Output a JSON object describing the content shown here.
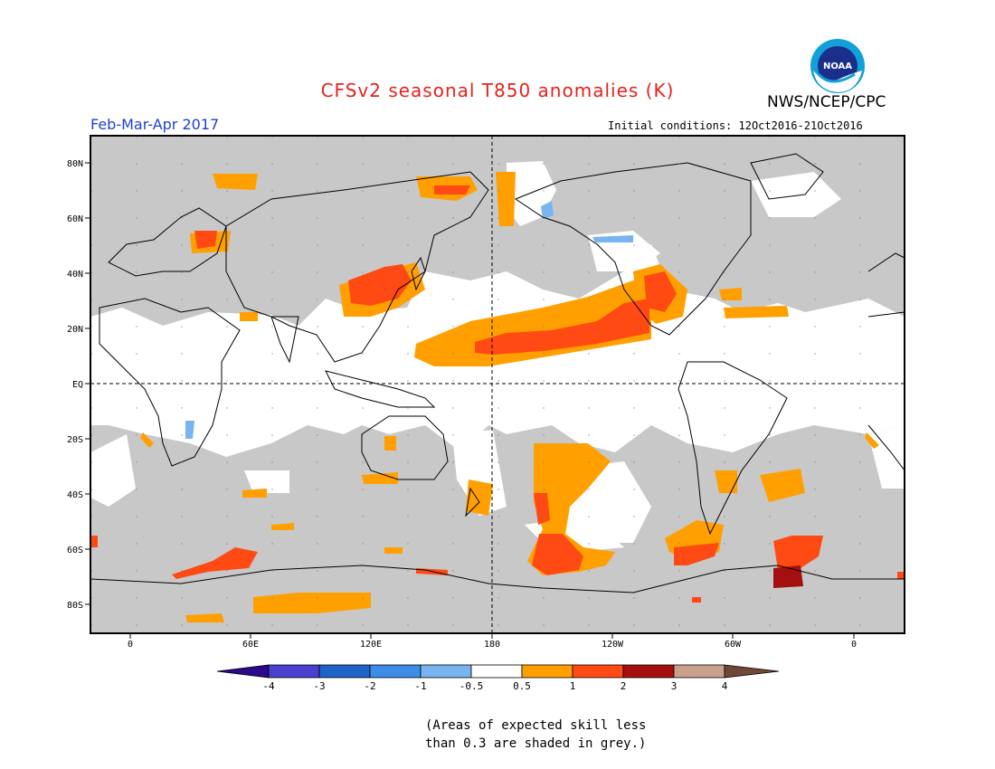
{
  "header": {
    "title": "CFSv2 seasonal T850 anomalies (K)",
    "org": "NWS/NCEP/CPC",
    "season": "Feb-Mar-Apr 2017",
    "initial_conditions": "Initial conditions: 12Oct2016-21Oct2016",
    "logo_text": "NOAA"
  },
  "map": {
    "lat_labels": [
      "80N",
      "60N",
      "40N",
      "20N",
      "EQ",
      "20S",
      "40S",
      "60S",
      "80S"
    ],
    "lon_labels": [
      "0",
      "60E",
      "120E",
      "180",
      "120W",
      "60W",
      "0"
    ]
  },
  "colorbar": {
    "tick_labels": [
      "-4",
      "-3",
      "-2",
      "-1",
      "-0.5",
      "0.5",
      "1",
      "2",
      "3",
      "4"
    ],
    "colors": [
      "#2a0a8a",
      "#4b3fd0",
      "#1e64c8",
      "#3c8ce8",
      "#78b4f0",
      "#ffffff",
      "#ffa000",
      "#ff4a14",
      "#a50f0f",
      "#c8a08c",
      "#704838"
    ]
  },
  "note": {
    "line1": "(Areas of expected skill less",
    "line2": "than 0.3 are shaded in grey.)"
  },
  "colors": {
    "grey_no_skill": "#c8c8c8",
    "title_red": "#e8221c",
    "season_blue": "#1d3fd6"
  }
}
